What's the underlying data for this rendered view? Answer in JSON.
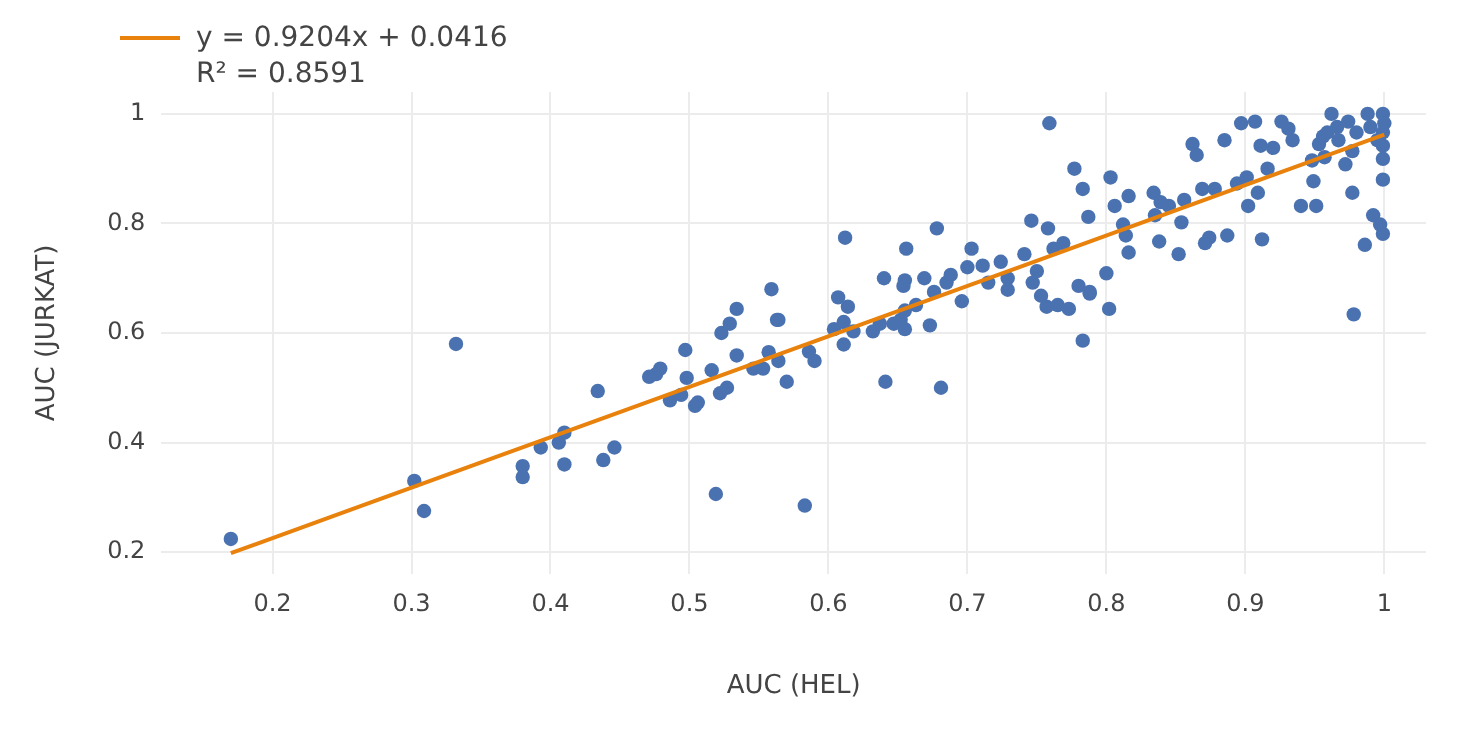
{
  "chart_data": {
    "type": "scatter",
    "xlabel": "AUC (HEL)",
    "ylabel": "AUC (JURKAT)",
    "xlim": [
      0.12,
      1.03
    ],
    "ylim": [
      0.16,
      1.04
    ],
    "xticks": [
      0.2,
      0.3,
      0.4,
      0.5,
      0.6,
      0.7,
      0.8,
      0.9,
      1
    ],
    "yticks": [
      0.2,
      0.4,
      0.6,
      0.8,
      1
    ],
    "grid": true,
    "legend": "top left",
    "marker": "circle",
    "annotations": [
      "R² = 0.8591"
    ],
    "series": [
      {
        "color": "#4a72b0",
        "x": [
          0.17,
          0.302,
          0.309,
          0.332,
          0.38,
          0.38,
          0.393,
          0.406,
          0.41,
          0.41,
          0.434,
          0.438,
          0.446,
          0.471,
          0.476,
          0.479,
          0.486,
          0.494,
          0.497,
          0.498,
          0.504,
          0.506,
          0.516,
          0.519,
          0.522,
          0.523,
          0.527,
          0.529,
          0.534,
          0.534,
          0.546,
          0.553,
          0.557,
          0.559,
          0.563,
          0.564,
          0.564,
          0.57,
          0.586,
          0.59,
          0.583,
          0.607,
          0.614,
          0.604,
          0.611,
          0.611,
          0.618,
          0.632,
          0.637,
          0.641,
          0.647,
          0.652,
          0.655,
          0.655,
          0.663,
          0.673,
          0.676,
          0.681,
          0.696,
          0.685,
          0.783,
          0.802,
          0.788,
          0.773,
          0.765,
          0.757,
          0.753,
          0.978,
          0.655,
          0.64,
          0.759,
          0.612,
          0.678,
          0.656,
          0.654,
          0.669,
          0.688,
          0.703,
          0.7,
          0.711,
          0.724,
          0.729,
          0.741,
          0.746,
          0.75,
          0.758,
          0.762,
          0.769,
          0.777,
          0.783,
          0.78,
          0.787,
          0.788,
          0.8,
          0.803,
          0.806,
          0.812,
          0.816,
          0.816,
          0.814,
          0.834,
          0.835,
          0.838,
          0.845,
          0.852,
          0.854,
          0.856,
          0.862,
          0.865,
          0.869,
          0.871,
          0.874,
          0.878,
          0.885,
          0.887,
          0.894,
          0.897,
          0.901,
          0.902,
          0.907,
          0.909,
          0.911,
          0.912,
          0.916,
          0.92,
          0.926,
          0.931,
          0.934,
          0.94,
          0.948,
          0.949,
          0.951,
          0.953,
          0.956,
          0.957,
          0.962,
          0.966,
          0.967,
          0.972,
          0.974,
          0.977,
          0.977,
          0.98,
          0.988,
          0.986,
          0.992,
          0.997,
          0.999,
          0.999,
          0.999,
          0.999,
          0.999,
          0.999,
          1,
          0.995,
          0.99,
          0.959,
          0.839,
          0.715,
          0.729,
          0.747
        ],
        "values": [
          0.224,
          0.33,
          0.275,
          0.58,
          0.357,
          0.337,
          0.391,
          0.4,
          0.418,
          0.36,
          0.494,
          0.368,
          0.391,
          0.52,
          0.525,
          0.535,
          0.477,
          0.487,
          0.569,
          0.518,
          0.467,
          0.473,
          0.532,
          0.306,
          0.49,
          0.6,
          0.5,
          0.617,
          0.644,
          0.559,
          0.535,
          0.535,
          0.565,
          0.68,
          0.624,
          0.624,
          0.549,
          0.511,
          0.566,
          0.549,
          0.285,
          0.665,
          0.648,
          0.607,
          0.62,
          0.579,
          0.603,
          0.603,
          0.617,
          0.511,
          0.617,
          0.624,
          0.607,
          0.641,
          0.651,
          0.614,
          0.675,
          0.5,
          0.658,
          0.692,
          0.586,
          0.644,
          0.672,
          0.644,
          0.651,
          0.648,
          0.668,
          0.634,
          0.696,
          0.7,
          0.983,
          0.774,
          0.791,
          0.754,
          0.686,
          0.7,
          0.706,
          0.754,
          0.72,
          0.723,
          0.73,
          0.7,
          0.744,
          0.805,
          0.713,
          0.791,
          0.754,
          0.764,
          0.9,
          0.863,
          0.686,
          0.812,
          0.675,
          0.709,
          0.884,
          0.832,
          0.798,
          0.85,
          0.747,
          0.778,
          0.856,
          0.815,
          0.767,
          0.832,
          0.744,
          0.802,
          0.843,
          0.945,
          0.925,
          0.863,
          0.764,
          0.774,
          0.863,
          0.952,
          0.778,
          0.873,
          0.983,
          0.884,
          0.832,
          0.986,
          0.856,
          0.942,
          0.771,
          0.9,
          0.938,
          0.986,
          0.973,
          0.952,
          0.832,
          0.915,
          0.877,
          0.832,
          0.945,
          0.959,
          0.921,
          1,
          0.976,
          0.952,
          0.908,
          0.986,
          0.856,
          0.932,
          0.966,
          1,
          0.761,
          0.815,
          0.798,
          0.781,
          0.88,
          0.918,
          0.942,
          0.966,
          1,
          0.983,
          0.952,
          0.976,
          0.966,
          0.839,
          0.692,
          0.679,
          0.692
        ]
      },
      {
        "type": "line",
        "name": "y = 0.9204x + 0.0416",
        "color": "#e8820c",
        "marker": "none",
        "x": [
          0.17,
          1
        ],
        "values": [
          0.198,
          0.962
        ]
      }
    ]
  }
}
